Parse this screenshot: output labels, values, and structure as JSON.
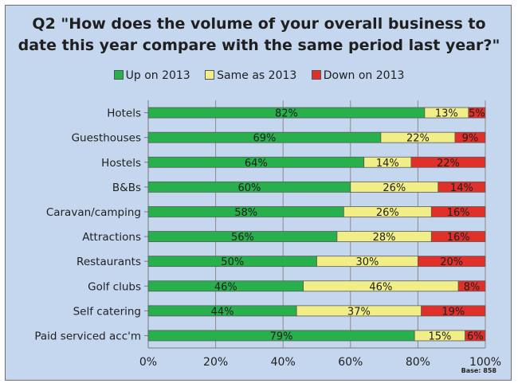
{
  "title": [
    "Q2 \"How does the volume of your overall business to",
    "date this year compare with the same period last year?\""
  ],
  "base_note": "Base: 858",
  "colors": {
    "up": "#27b04b",
    "same": "#f1ee87",
    "down": "#e0302a"
  },
  "chart_data": {
    "type": "bar",
    "stacked": "100%",
    "orientation": "horizontal",
    "categories": [
      "Hotels",
      "Guesthouses",
      "Hostels",
      "B&Bs",
      "Caravan/camping",
      "Attractions",
      "Restaurants",
      "Golf clubs",
      "Self catering",
      "Paid serviced acc'm"
    ],
    "series": [
      {
        "name": "Up on 2013",
        "values": [
          82,
          69,
          64,
          60,
          58,
          56,
          50,
          46,
          44,
          79
        ]
      },
      {
        "name": "Same as 2013",
        "values": [
          13,
          22,
          14,
          26,
          26,
          28,
          30,
          46,
          37,
          15
        ]
      },
      {
        "name": "Down on 2013",
        "values": [
          5,
          9,
          22,
          14,
          16,
          16,
          20,
          8,
          19,
          6
        ]
      }
    ],
    "value_suffix": "%",
    "xlim": [
      0,
      100
    ],
    "xticks": [
      0,
      20,
      40,
      60,
      80,
      100
    ],
    "xtick_labels": [
      "0%",
      "20%",
      "40%",
      "60%",
      "80%",
      "100%"
    ],
    "legend_position": "top",
    "grid": "vertical"
  }
}
